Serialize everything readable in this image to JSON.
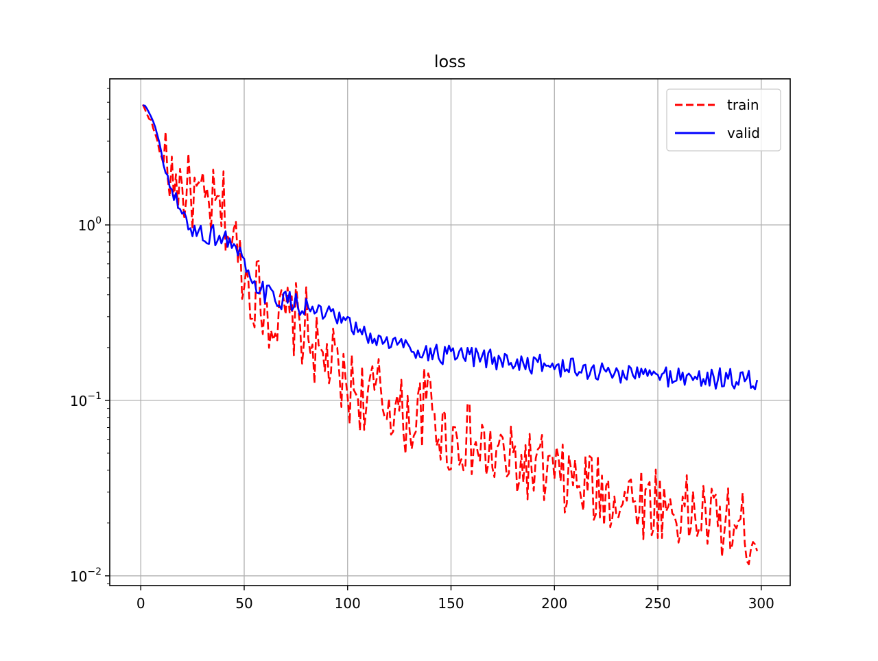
{
  "chart_data": {
    "type": "line",
    "title": "loss",
    "xlabel": "",
    "ylabel": "",
    "y_scale": "log",
    "xlim": [
      -15,
      314
    ],
    "ylim": [
      0.0088,
      6.8
    ],
    "grid": true,
    "legend": {
      "placement": "top-right",
      "entries": [
        "train",
        "valid"
      ]
    },
    "x_ticks": [
      {
        "value": 0,
        "label": "0"
      },
      {
        "value": 50,
        "label": "50"
      },
      {
        "value": 100,
        "label": "100"
      },
      {
        "value": 150,
        "label": "150"
      },
      {
        "value": 200,
        "label": "200"
      },
      {
        "value": 250,
        "label": "250"
      },
      {
        "value": 300,
        "label": "300"
      }
    ],
    "y_ticks": [
      {
        "value": 1,
        "label": "10",
        "exp": "0"
      },
      {
        "value": 0.1,
        "label": "10",
        "exp": "−1"
      },
      {
        "value": 0.01,
        "label": "10",
        "exp": "−2"
      }
    ],
    "series": [
      {
        "name": "train",
        "color": "#ff0000",
        "dash": "dashed",
        "x": [
          1,
          5,
          8,
          10,
          12,
          15,
          18,
          20,
          23,
          25,
          28,
          30,
          33,
          35,
          38,
          40,
          42,
          44,
          46,
          48,
          50,
          52,
          54,
          56,
          58,
          60,
          62,
          64,
          66,
          68,
          70,
          72,
          74,
          76,
          78,
          80,
          82,
          84,
          86,
          88,
          90,
          92,
          94,
          96,
          98,
          100,
          103,
          106,
          109,
          112,
          115,
          118,
          121,
          124,
          127,
          130,
          133,
          136,
          139,
          142,
          145,
          148,
          151,
          154,
          157,
          160,
          163,
          166,
          169,
          172,
          175,
          178,
          181,
          184,
          187,
          190,
          193,
          196,
          199,
          202,
          205,
          208,
          211,
          214,
          217,
          220,
          223,
          226,
          229,
          232,
          235,
          238,
          241,
          244,
          247,
          250,
          253,
          256,
          259,
          262,
          265,
          268,
          271,
          274,
          277,
          280,
          283,
          286,
          289,
          292,
          295,
          298
        ],
        "y": [
          4.8,
          3.9,
          3.0,
          2.4,
          2.1,
          1.95,
          1.75,
          1.6,
          1.55,
          1.5,
          1.35,
          1.25,
          1.3,
          1.25,
          1.15,
          1.25,
          1.0,
          0.8,
          0.75,
          0.62,
          0.58,
          0.46,
          0.42,
          0.44,
          0.36,
          0.38,
          0.3,
          0.33,
          0.26,
          0.28,
          0.31,
          0.27,
          0.29,
          0.28,
          0.25,
          0.27,
          0.23,
          0.2,
          0.17,
          0.16,
          0.18,
          0.16,
          0.15,
          0.13,
          0.12,
          0.115,
          0.12,
          0.11,
          0.1,
          0.105,
          0.11,
          0.095,
          0.1,
          0.085,
          0.08,
          0.078,
          0.075,
          0.09,
          0.1,
          0.085,
          0.065,
          0.06,
          0.062,
          0.058,
          0.064,
          0.055,
          0.052,
          0.05,
          0.048,
          0.046,
          0.05,
          0.042,
          0.045,
          0.04,
          0.044,
          0.038,
          0.041,
          0.036,
          0.04,
          0.035,
          0.034,
          0.036,
          0.032,
          0.031,
          0.034,
          0.029,
          0.03,
          0.028,
          0.031,
          0.027,
          0.029,
          0.026,
          0.03,
          0.025,
          0.026,
          0.027,
          0.024,
          0.025,
          0.023,
          0.024,
          0.022,
          0.023,
          0.021,
          0.022,
          0.02,
          0.021,
          0.019,
          0.02,
          0.018,
          0.019,
          0.017,
          0.018
        ],
        "noise_amplitude": 0.22
      },
      {
        "name": "valid",
        "color": "#0000ff",
        "dash": "solid",
        "x": [
          1,
          3,
          5,
          7,
          9,
          11,
          13,
          15,
          17,
          19,
          21,
          23,
          25,
          27,
          29,
          31,
          33,
          35,
          37,
          39,
          41,
          43,
          45,
          47,
          49,
          51,
          53,
          55,
          57,
          59,
          61,
          64,
          67,
          70,
          73,
          76,
          79,
          82,
          85,
          88,
          91,
          94,
          97,
          100,
          104,
          108,
          112,
          116,
          120,
          124,
          128,
          132,
          136,
          140,
          144,
          148,
          152,
          156,
          160,
          164,
          168,
          172,
          176,
          180,
          184,
          188,
          192,
          196,
          200,
          204,
          208,
          212,
          216,
          220,
          224,
          228,
          232,
          236,
          240,
          244,
          248,
          252,
          256,
          260,
          264,
          268,
          272,
          276,
          280,
          284,
          288,
          292,
          296,
          298
        ],
        "y": [
          4.8,
          4.6,
          4.2,
          3.6,
          2.9,
          2.2,
          1.8,
          1.5,
          1.35,
          1.2,
          1.08,
          1.02,
          0.95,
          0.92,
          0.9,
          0.88,
          0.87,
          0.88,
          0.86,
          0.85,
          0.84,
          0.8,
          0.75,
          0.7,
          0.63,
          0.52,
          0.46,
          0.44,
          0.43,
          0.42,
          0.4,
          0.39,
          0.38,
          0.37,
          0.36,
          0.355,
          0.34,
          0.33,
          0.32,
          0.31,
          0.3,
          0.29,
          0.28,
          0.27,
          0.25,
          0.235,
          0.225,
          0.22,
          0.215,
          0.21,
          0.205,
          0.2,
          0.19,
          0.185,
          0.183,
          0.18,
          0.178,
          0.176,
          0.175,
          0.173,
          0.172,
          0.17,
          0.168,
          0.166,
          0.164,
          0.162,
          0.16,
          0.158,
          0.156,
          0.154,
          0.152,
          0.15,
          0.148,
          0.146,
          0.145,
          0.144,
          0.143,
          0.142,
          0.141,
          0.14,
          0.139,
          0.138,
          0.137,
          0.137,
          0.136,
          0.135,
          0.134,
          0.134,
          0.133,
          0.132,
          0.131,
          0.13,
          0.129,
          0.128
        ],
        "noise_amplitude": 0.06
      }
    ]
  }
}
